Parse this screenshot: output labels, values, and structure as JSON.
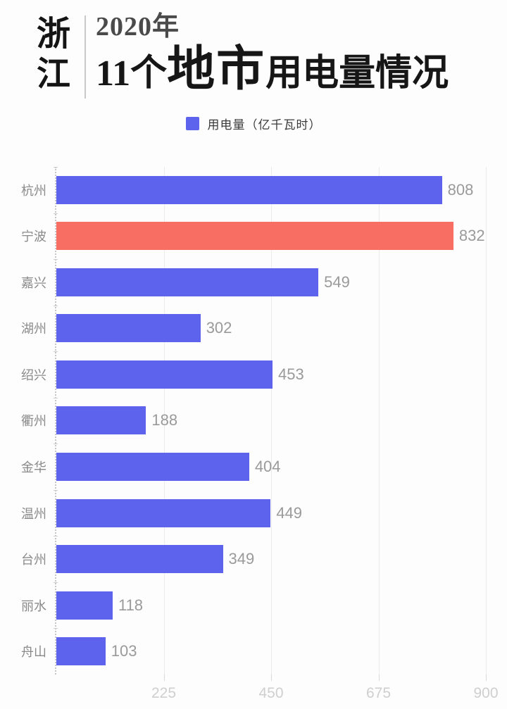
{
  "title": {
    "region_chars": [
      "浙",
      "江"
    ],
    "year_line": "2020年",
    "main_part_normal1": "11个",
    "main_part_big": "地市",
    "main_part_normal2": "用电量情况"
  },
  "legend": {
    "label": "用电量（亿千瓦时）"
  },
  "chart_data": {
    "type": "bar",
    "orientation": "horizontal",
    "title": "浙江 2020年11个地市用电量情况",
    "legend_label": "用电量（亿千瓦时）",
    "unit": "亿千瓦时",
    "categories": [
      "杭州",
      "宁波",
      "嘉兴",
      "湖州",
      "绍兴",
      "衢州",
      "金华",
      "温州",
      "台州",
      "丽水",
      "舟山"
    ],
    "values": [
      808,
      832,
      549,
      302,
      453,
      188,
      404,
      449,
      349,
      118,
      103
    ],
    "highlight_index": 1,
    "xlim": [
      0,
      900
    ],
    "x_ticks": [
      225,
      450,
      675,
      900
    ],
    "grid": true
  },
  "colors": {
    "bar_default": "#5d63ec",
    "bar_highlight": "#f86e62",
    "grid": "#ebebeb",
    "value_label": "#9a9a9a",
    "category_label": "#8a8a8a",
    "tick_label": "#cfcfcf"
  }
}
